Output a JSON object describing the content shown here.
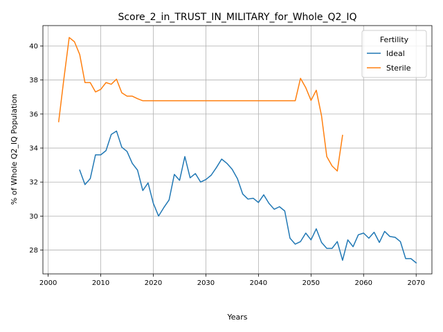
{
  "chart_data": {
    "type": "line",
    "title": "Score_2_in_TRUST_IN_MILITARY_for_Whole_Q2_IQ",
    "xlabel": "Years",
    "ylabel": "% of Whole Q2_IQ Population",
    "xlim": [
      1999,
      2073
    ],
    "ylim": [
      26.6,
      41.2
    ],
    "xticks": [
      2000,
      2010,
      2020,
      2030,
      2040,
      2050,
      2060,
      2070
    ],
    "yticks": [
      28,
      30,
      32,
      34,
      36,
      38,
      40
    ],
    "grid": true,
    "legend": {
      "title": "Fertility",
      "placement": "top-right"
    },
    "series": [
      {
        "name": "Ideal",
        "color": "#1f77b4",
        "x": [
          2006,
          2007,
          2008,
          2009,
          2010,
          2011,
          2012,
          2013,
          2014,
          2015,
          2016,
          2017,
          2018,
          2019,
          2020,
          2021,
          2022,
          2023,
          2024,
          2025,
          2026,
          2027,
          2028,
          2029,
          2030,
          2031,
          2032,
          2033,
          2034,
          2035,
          2036,
          2037,
          2038,
          2039,
          2040,
          2041,
          2042,
          2043,
          2044,
          2045,
          2046,
          2047,
          2048,
          2049,
          2050,
          2051,
          2052,
          2053,
          2054,
          2055,
          2056,
          2057,
          2058,
          2059,
          2060,
          2061,
          2062,
          2063,
          2064,
          2065,
          2066,
          2067,
          2068,
          2069,
          2070
        ],
        "y": [
          32.7,
          31.85,
          32.2,
          33.6,
          33.6,
          33.85,
          34.8,
          35.0,
          34.05,
          33.8,
          33.1,
          32.7,
          31.5,
          31.95,
          30.75,
          30.0,
          30.5,
          30.95,
          32.45,
          32.1,
          33.5,
          32.25,
          32.5,
          32.0,
          32.15,
          32.4,
          32.85,
          33.35,
          33.1,
          32.75,
          32.2,
          31.3,
          31.0,
          31.05,
          30.8,
          31.25,
          30.75,
          30.4,
          30.55,
          30.3,
          28.7,
          28.35,
          28.5,
          29.0,
          28.6,
          29.25,
          28.45,
          28.1,
          28.1,
          28.5,
          27.4,
          28.6,
          28.2,
          28.9,
          29.0,
          28.7,
          29.05,
          28.45,
          29.1,
          28.8,
          28.75,
          28.5,
          27.5,
          27.5,
          27.25
        ]
      },
      {
        "name": "Sterile",
        "color": "#ff7f0e",
        "x": [
          2002,
          2003,
          2004,
          2005,
          2006,
          2007,
          2008,
          2009,
          2010,
          2011,
          2012,
          2013,
          2014,
          2015,
          2016,
          2017,
          2018,
          2019,
          2020,
          2021,
          2022,
          2023,
          2024,
          2025,
          2026,
          2027,
          2028,
          2029,
          2030,
          2031,
          2032,
          2033,
          2034,
          2035,
          2036,
          2037,
          2038,
          2039,
          2040,
          2041,
          2042,
          2043,
          2044,
          2045,
          2046,
          2047,
          2048,
          2049,
          2050,
          2051,
          2052,
          2053,
          2054,
          2055,
          2056
        ],
        "y": [
          35.55,
          38.1,
          40.5,
          40.25,
          39.5,
          37.85,
          37.85,
          37.3,
          37.45,
          37.85,
          37.75,
          38.05,
          37.25,
          37.05,
          37.05,
          36.9,
          36.78,
          36.78,
          36.78,
          36.78,
          36.78,
          36.78,
          36.78,
          36.78,
          36.78,
          36.78,
          36.78,
          36.78,
          36.78,
          36.78,
          36.78,
          36.78,
          36.78,
          36.78,
          36.78,
          36.78,
          36.78,
          36.78,
          36.78,
          36.78,
          36.78,
          36.78,
          36.78,
          36.78,
          36.78,
          36.78,
          38.1,
          37.55,
          36.8,
          37.4,
          35.9,
          33.5,
          32.95,
          32.65,
          34.75
        ]
      }
    ]
  }
}
